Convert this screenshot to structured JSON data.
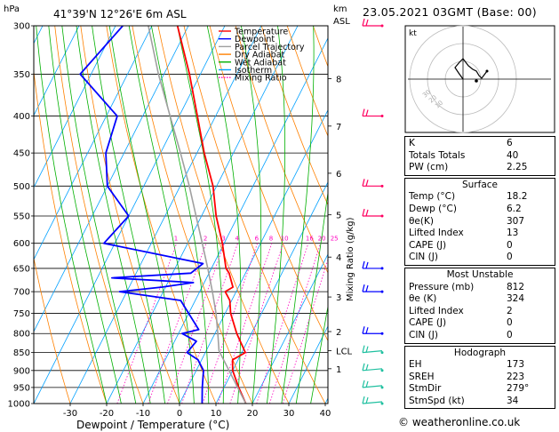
{
  "header": {
    "location": "41°39'N  12°26'E  6m  ASL",
    "datetime": "23.05.2021  03GMT  (Base: 00)",
    "y_unit": "hPa",
    "km_unit": "km",
    "asl_unit": "ASL",
    "mixing_ratio_label": "Mixing Ratio (g/kg)",
    "x_axis_label": "Dewpoint / Temperature (°C)"
  },
  "legend": [
    {
      "label": "Temperature",
      "color": "#ff0000",
      "dash": "solid"
    },
    {
      "label": "Dewpoint",
      "color": "#0000ff",
      "dash": "solid"
    },
    {
      "label": "Parcel Trajectory",
      "color": "#a0a0a0",
      "dash": "solid"
    },
    {
      "label": "Dry Adiabat",
      "color": "#ff8000",
      "dash": "solid"
    },
    {
      "label": "Wet Adiabat",
      "color": "#00b000",
      "dash": "solid"
    },
    {
      "label": "Isotherm",
      "color": "#00a0ff",
      "dash": "solid"
    },
    {
      "label": "Mixing Ratio",
      "color": "#ff00c0",
      "dash": "dotted"
    }
  ],
  "chart_data": {
    "type": "line",
    "title": "41°39'N  12°26'E  6m  ASL",
    "xlabel": "Dewpoint / Temperature (°C)",
    "ylabel": "hPa",
    "x_ticks": [
      -30,
      -20,
      -10,
      0,
      10,
      20,
      30,
      40
    ],
    "pressure_ticks": [
      300,
      350,
      400,
      450,
      500,
      550,
      600,
      650,
      700,
      750,
      800,
      850,
      900,
      950,
      1000
    ],
    "km_ticks": [
      {
        "km": "8",
        "p": 355
      },
      {
        "km": "7",
        "p": 413
      },
      {
        "km": "6",
        "p": 480
      },
      {
        "km": "5",
        "p": 548
      },
      {
        "km": "4",
        "p": 627
      },
      {
        "km": "3",
        "p": 712
      },
      {
        "km": "2",
        "p": 795
      },
      {
        "km": "LCL",
        "p": 845
      },
      {
        "km": "1",
        "p": 895
      }
    ],
    "mixing_ratio_labels": [
      "1",
      "2",
      "3",
      "4",
      "6",
      "8",
      "10",
      "16",
      "20",
      "25"
    ],
    "mixing_ratio_values": [
      1,
      2,
      3,
      4,
      6,
      8,
      10,
      16,
      20,
      25
    ],
    "series": [
      {
        "name": "Temperature",
        "color": "#ff0000",
        "p": [
          1000,
          950,
          900,
          870,
          850,
          800,
          750,
          720,
          700,
          690,
          660,
          650,
          600,
          550,
          500,
          450,
          400,
          350,
          300
        ],
        "t": [
          18.2,
          14,
          10,
          8.5,
          11,
          6,
          1.5,
          -0.5,
          -3,
          -1.5,
          -4.5,
          -6,
          -10.5,
          -16,
          -21,
          -28,
          -35,
          -43,
          -53
        ]
      },
      {
        "name": "Dewpoint",
        "color": "#0000ff",
        "p": [
          1000,
          950,
          900,
          870,
          850,
          820,
          800,
          790,
          720,
          700,
          690,
          680,
          670,
          660,
          640,
          600,
          550,
          500,
          450,
          400,
          350,
          300
        ],
        "t": [
          6.2,
          4,
          2,
          -1,
          -5,
          -4,
          -9,
          -5,
          -14,
          -32,
          -21,
          -13,
          -36,
          -15,
          -13,
          -43,
          -40,
          -50,
          -55,
          -57,
          -73,
          -68
        ]
      },
      {
        "name": "Parcel Trajectory",
        "color": "#a0a0a0",
        "p": [
          1000,
          900,
          845,
          800,
          750,
          700,
          650,
          600,
          550,
          500,
          450,
          400,
          350,
          300
        ],
        "t": [
          18.2,
          9,
          3.5,
          0.8,
          -2.5,
          -6.5,
          -11,
          -16,
          -21.5,
          -27.5,
          -34.5,
          -42.5,
          -51.5,
          -61
        ]
      }
    ],
    "wind_barbs_p": [
      300,
      400,
      500,
      550,
      650,
      700,
      800,
      850,
      900,
      950,
      1000
    ]
  },
  "hodograph": {
    "unit_label": "kt",
    "ring_labels": [
      "10",
      "20",
      "30"
    ]
  },
  "indices": {
    "rows": [
      {
        "label": "K",
        "value": "6"
      },
      {
        "label": "Totals Totals",
        "value": "40"
      },
      {
        "label": "PW (cm)",
        "value": "2.25"
      }
    ]
  },
  "surface": {
    "title": "Surface",
    "rows": [
      {
        "label": "Temp (°C)",
        "value": "18.2"
      },
      {
        "label": "Dewp (°C)",
        "value": "6.2"
      },
      {
        "label": "θe(K)",
        "value": "307"
      },
      {
        "label": "Lifted Index",
        "value": "13"
      },
      {
        "label": "CAPE (J)",
        "value": "0"
      },
      {
        "label": "CIN (J)",
        "value": "0"
      }
    ]
  },
  "most_unstable": {
    "title": "Most Unstable",
    "rows": [
      {
        "label": "Pressure (mb)",
        "value": "812"
      },
      {
        "label": "θe (K)",
        "value": "324"
      },
      {
        "label": "Lifted Index",
        "value": "2"
      },
      {
        "label": "CAPE (J)",
        "value": "0"
      },
      {
        "label": "CIN (J)",
        "value": "0"
      }
    ]
  },
  "hodograph_table": {
    "title": "Hodograph",
    "rows": [
      {
        "label": "EH",
        "value": "173"
      },
      {
        "label": "SREH",
        "value": "223"
      },
      {
        "label": "StmDir",
        "value": "279°"
      },
      {
        "label": "StmSpd (kt)",
        "value": "34"
      }
    ]
  },
  "footer": {
    "text": "© weatheronline.co.uk"
  }
}
